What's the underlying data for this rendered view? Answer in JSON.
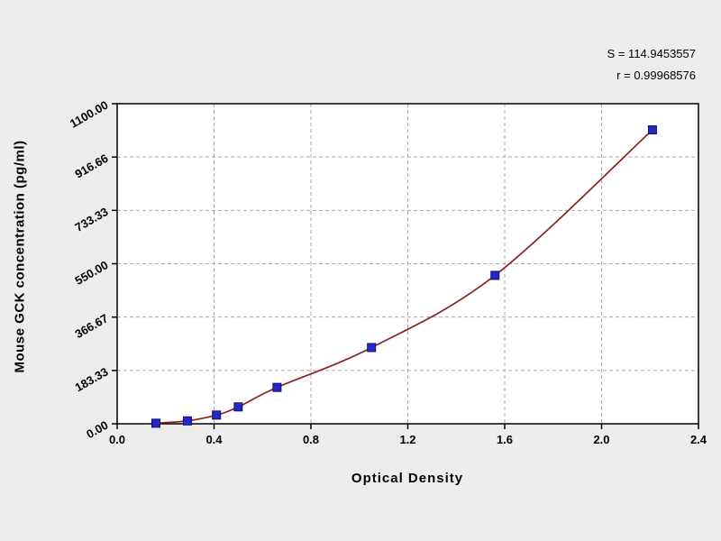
{
  "annotations": {
    "s_label": "S = 114.9453557",
    "r_label": "r = 0.99968576"
  },
  "chart_data": {
    "type": "scatter",
    "title": "",
    "xlabel": "Optical Density",
    "ylabel": "Mouse GCK concentration (pg/ml)",
    "xlim": [
      0.0,
      2.4
    ],
    "ylim": [
      0,
      1100
    ],
    "x_ticks": [
      "0.0",
      "0.4",
      "0.8",
      "1.2",
      "1.6",
      "2.0",
      "2.4"
    ],
    "y_ticks": [
      "0.00",
      "183.33",
      "366.67",
      "550.00",
      "733.33",
      "916.66",
      "1100.00"
    ],
    "grid": "dashed",
    "legend": "none",
    "series": [
      {
        "name": "standard-points",
        "type": "scatter",
        "marker": "square",
        "points": [
          [
            0.16,
            2
          ],
          [
            0.29,
            10
          ],
          [
            0.41,
            30
          ],
          [
            0.5,
            58
          ],
          [
            0.66,
            125
          ],
          [
            1.05,
            262
          ],
          [
            1.56,
            510
          ],
          [
            2.21,
            1010
          ]
        ]
      },
      {
        "name": "fit-curve",
        "type": "line"
      }
    ],
    "colors": {
      "page_bg": "#ededed",
      "plot_bg": "#ffffff",
      "frame": "#000000",
      "grid": "#a9a9a9",
      "curve": "#8b2222",
      "marker_fill": "#2626c9",
      "marker_stroke": "#10106a",
      "text": "#000000"
    }
  }
}
